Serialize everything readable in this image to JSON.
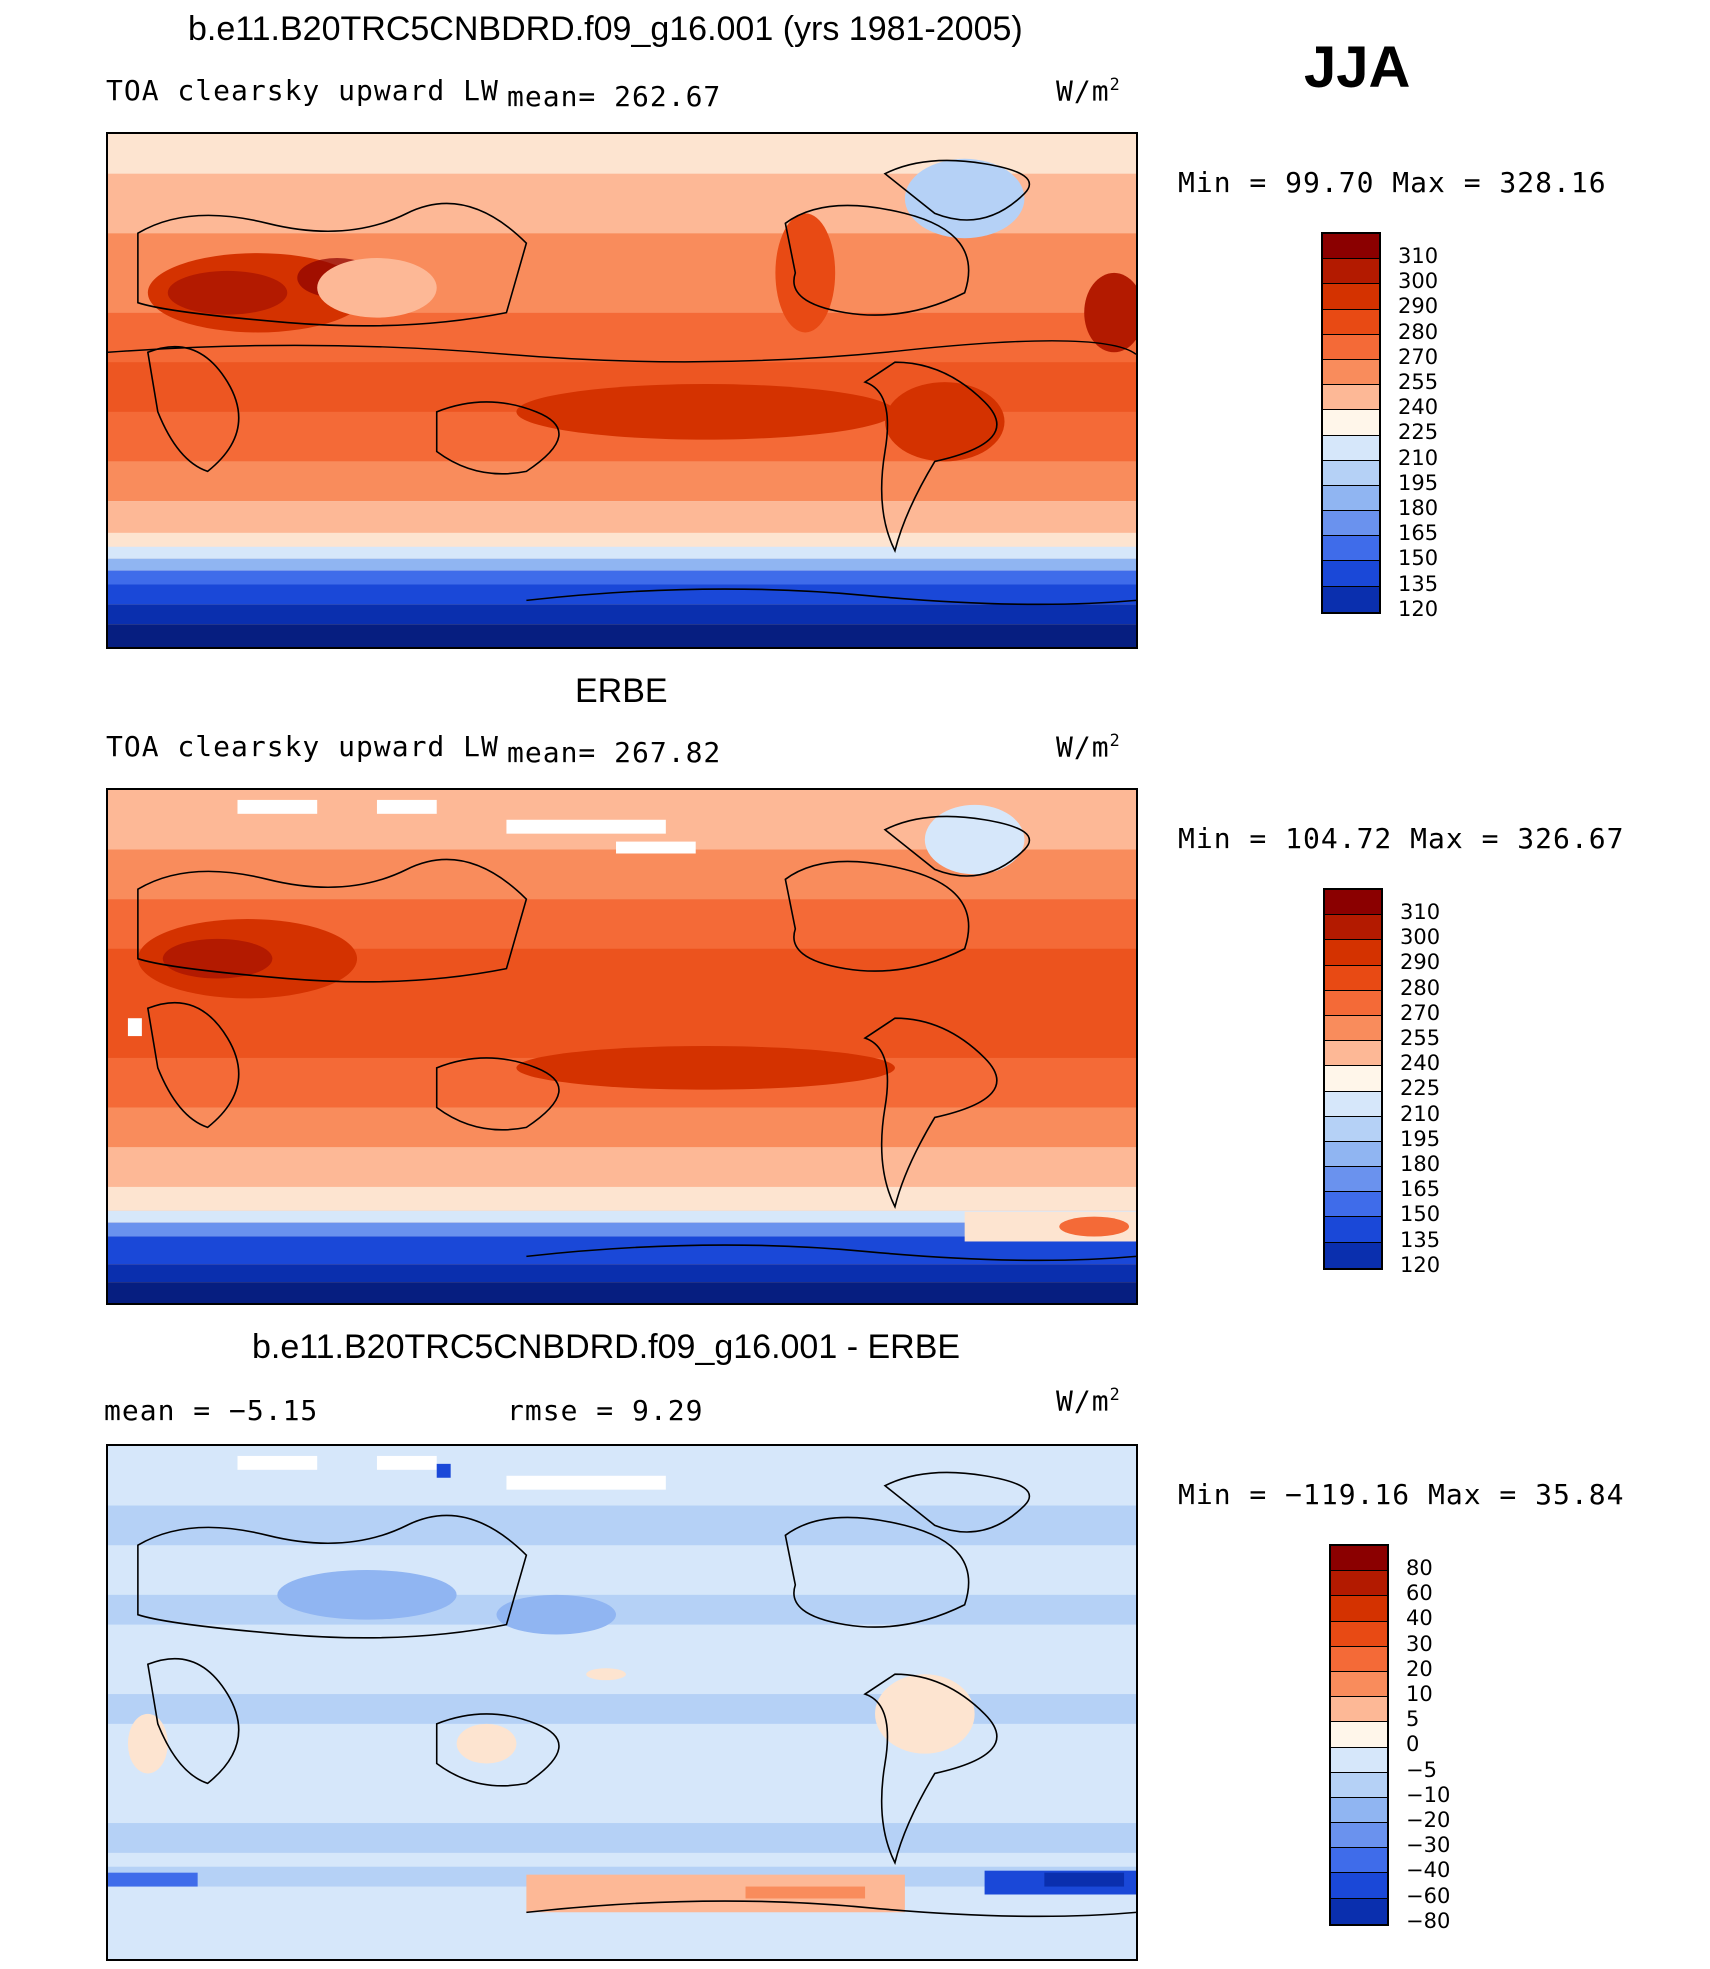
{
  "season": "JJA",
  "units": "W/m",
  "units_exp": "2",
  "panels": [
    {
      "id": "model",
      "title": "b.e11.B20TRC5CNBDRD.f09_g16.001 (yrs 1981-2005)",
      "variable": "TOA clearsky upward LW",
      "stat": "mean= 262.67",
      "minmax": "Min =  99.70 Max = 328.16",
      "levels": [
        "310",
        "300",
        "290",
        "280",
        "270",
        "255",
        "240",
        "225",
        "210",
        "195",
        "180",
        "165",
        "150",
        "135",
        "120"
      ]
    },
    {
      "id": "obs",
      "title": "ERBE",
      "variable": "TOA clearsky upward LW",
      "stat": "mean= 267.82",
      "minmax": "Min = 104.72 Max = 326.67",
      "levels": [
        "310",
        "300",
        "290",
        "280",
        "270",
        "255",
        "240",
        "225",
        "210",
        "195",
        "180",
        "165",
        "150",
        "135",
        "120"
      ]
    },
    {
      "id": "diff",
      "title": "b.e11.B20TRC5CNBDRD.f09_g16.001 - ERBE",
      "stat_mean": "mean =   −5.15",
      "stat_rmse": "rmse =    9.29",
      "minmax": "Min = −119.16 Max =  35.84",
      "levels": [
        "80",
        "60",
        "40",
        "30",
        "20",
        "10",
        "5",
        "0",
        "−5",
        "−10",
        "−20",
        "−30",
        "−40",
        "−60",
        "−80"
      ]
    }
  ],
  "colors": {
    "scale": [
      "#8b0000",
      "#b31a00",
      "#d43200",
      "#e84a14",
      "#f46a37",
      "#f98c5c",
      "#fdb896",
      "#fde4d0",
      "#fff6ea",
      "#d6e7fa",
      "#b5d1f6",
      "#90b5f2",
      "#6a92ee",
      "#3f6cea",
      "#1a48d8",
      "#0a2fae",
      "#061e80"
    ]
  }
}
